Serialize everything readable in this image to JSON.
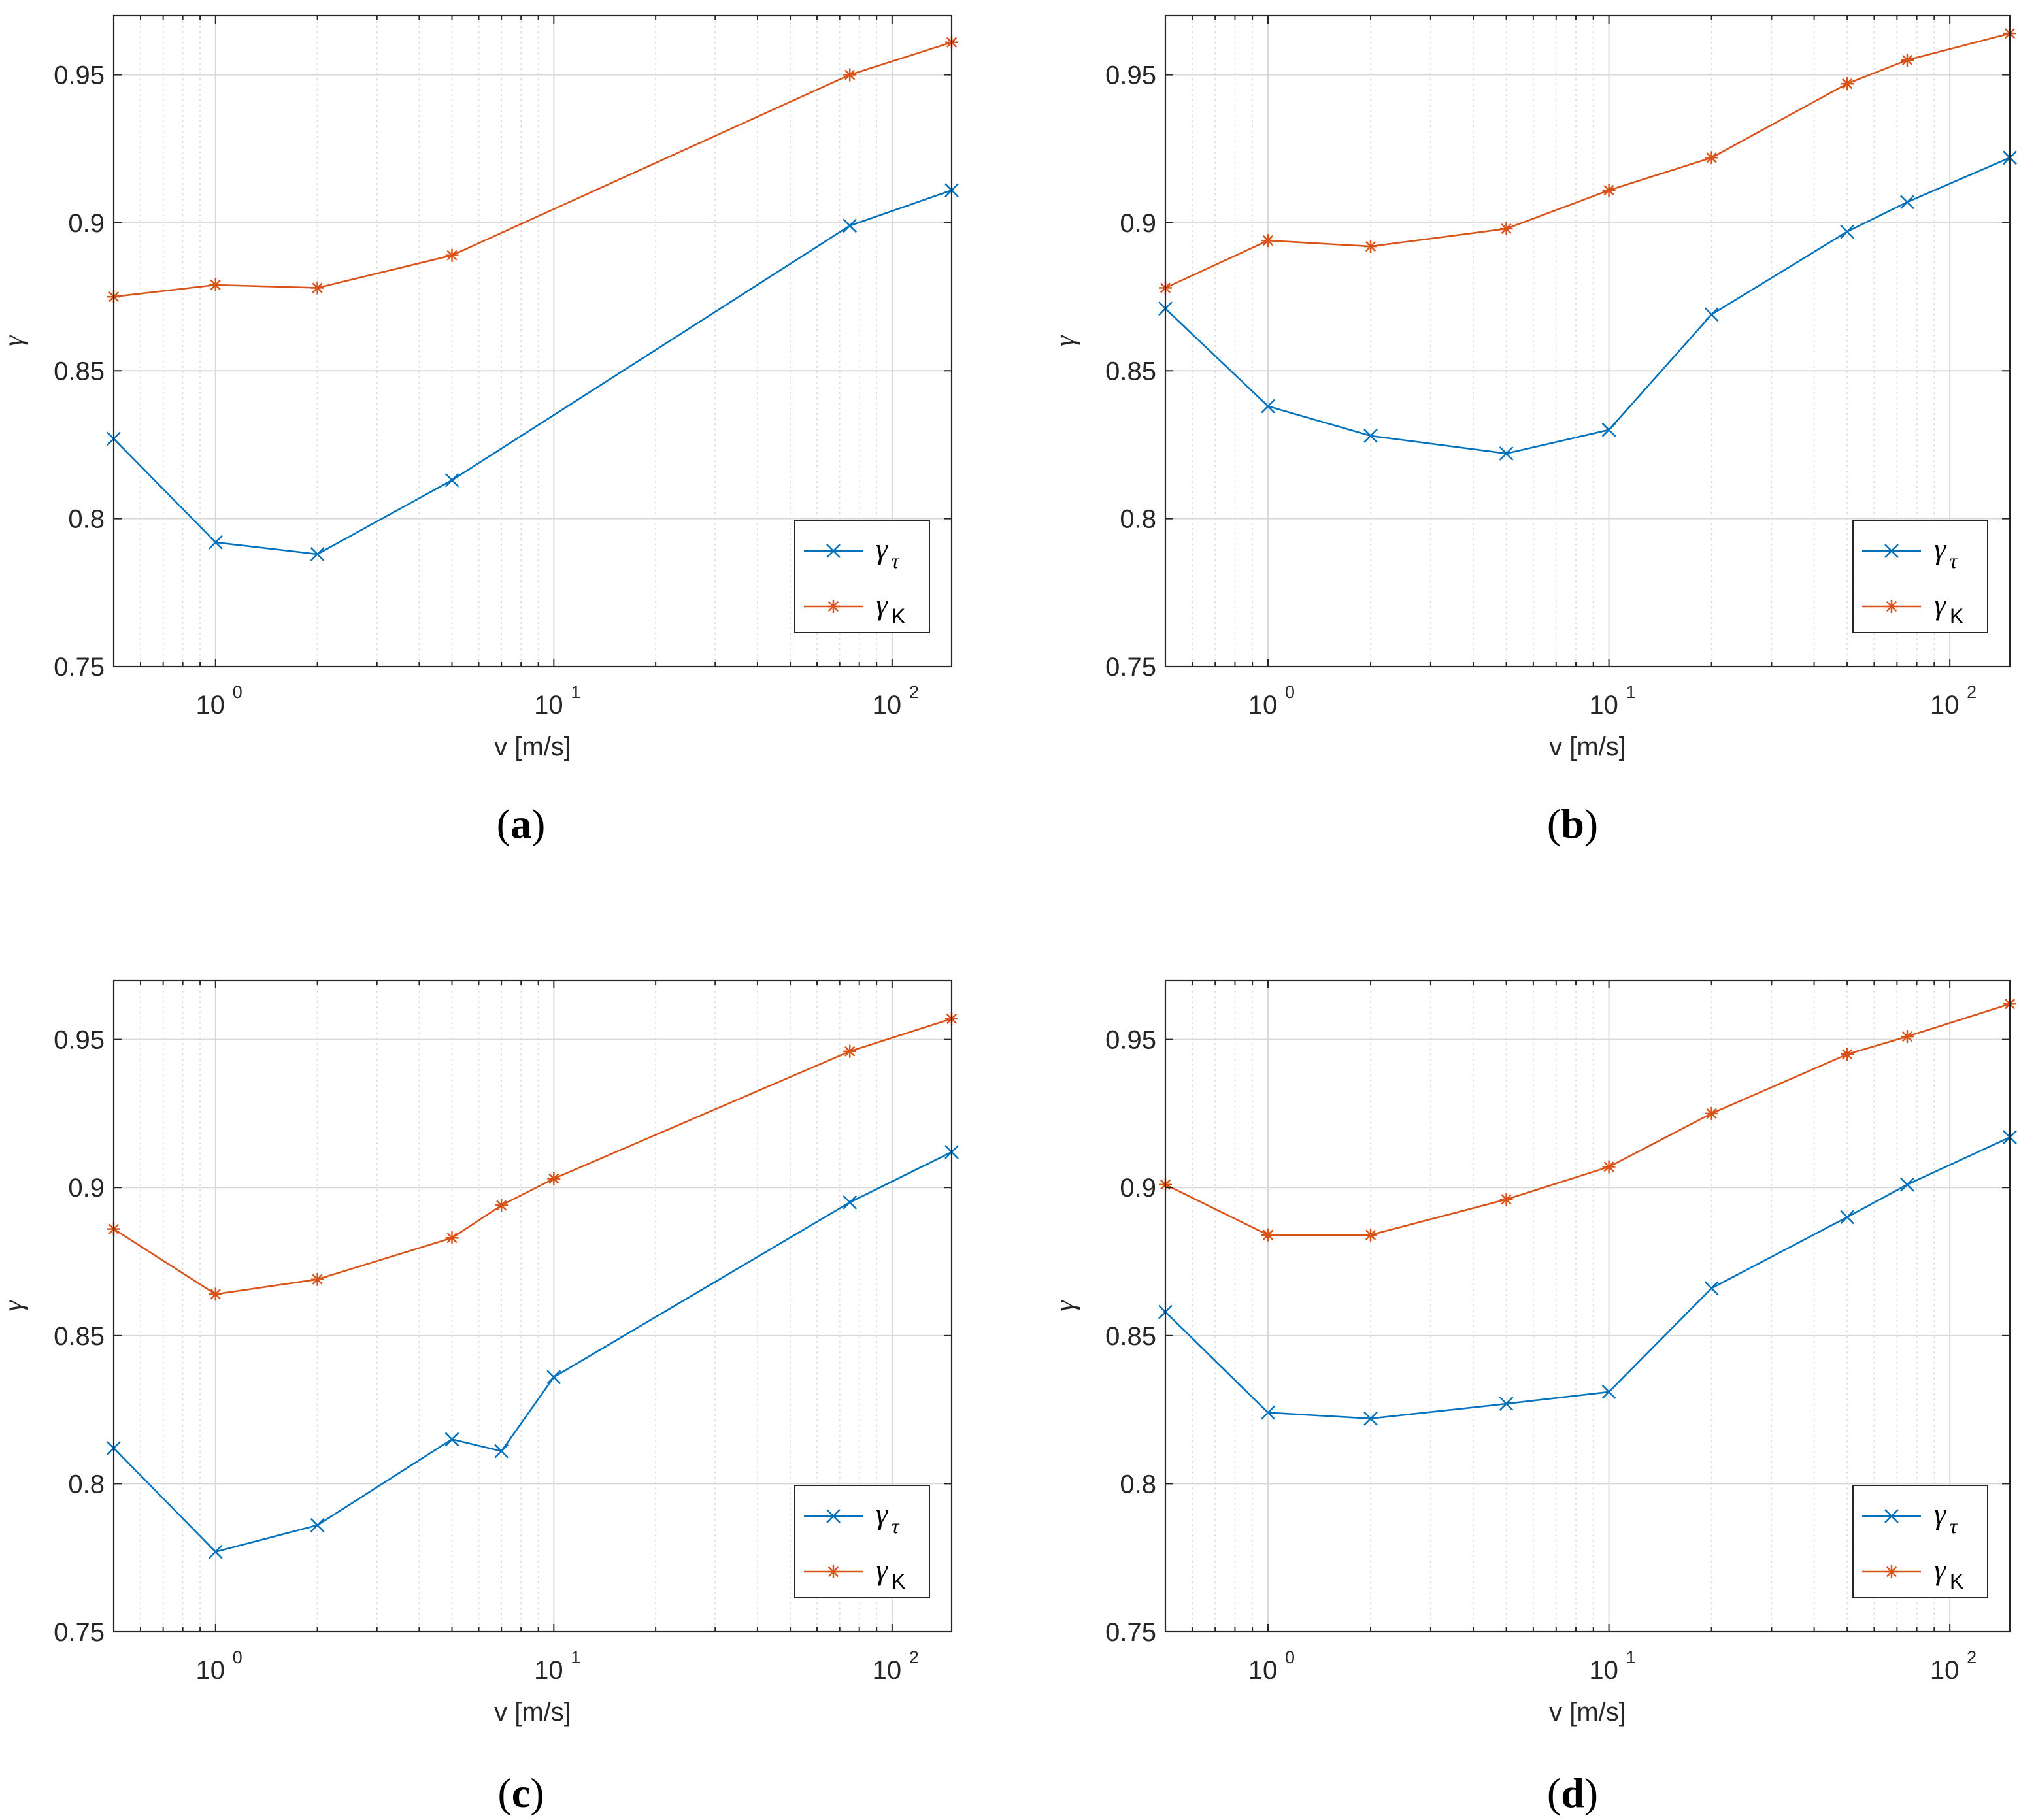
{
  "figure": {
    "colors": {
      "gamma_tau": "#0072BD",
      "gamma_K": "#D95319",
      "axis": "#262626",
      "grid": "#d9d9d9"
    },
    "legend_entries": [
      {
        "base": "γ",
        "sub": "τ",
        "series": "gamma_tau",
        "marker": "x"
      },
      {
        "base": "γ",
        "sub": "K",
        "series": "gamma_K",
        "marker": "star"
      }
    ]
  },
  "chart_data": [
    {
      "panel": "a",
      "caption_letter": "a",
      "type": "line",
      "xlabel": "v [m/s]",
      "ylabel": "γ",
      "xscale": "log",
      "xlim": [
        0.5,
        150
      ],
      "ylim": [
        0.75,
        0.97
      ],
      "yticks": [
        "0.75",
        "0.8",
        "0.85",
        "0.9",
        "0.95"
      ],
      "xticks": [
        {
          "base": "10",
          "exp": "0"
        },
        {
          "base": "10",
          "exp": "1"
        },
        {
          "base": "10",
          "exp": "2"
        }
      ],
      "grid": true,
      "legend_position": "bottom-right",
      "series": [
        {
          "name": "γτ",
          "key": "gamma_tau",
          "x": [
            0.5,
            1,
            2,
            5,
            75,
            150
          ],
          "y": [
            0.827,
            0.792,
            0.788,
            0.813,
            0.899,
            0.911
          ]
        },
        {
          "name": "γK",
          "key": "gamma_K",
          "x": [
            0.5,
            1,
            2,
            5,
            75,
            150
          ],
          "y": [
            0.875,
            0.879,
            0.878,
            0.889,
            0.95,
            0.961
          ]
        }
      ]
    },
    {
      "panel": "b",
      "caption_letter": "b",
      "type": "line",
      "xlabel": "v [m/s]",
      "ylabel": "γ",
      "xscale": "log",
      "xlim": [
        0.5,
        150
      ],
      "ylim": [
        0.75,
        0.97
      ],
      "yticks": [
        "0.75",
        "0.8",
        "0.85",
        "0.9",
        "0.95"
      ],
      "xticks": [
        {
          "base": "10",
          "exp": "0"
        },
        {
          "base": "10",
          "exp": "1"
        },
        {
          "base": "10",
          "exp": "2"
        }
      ],
      "grid": true,
      "legend_position": "bottom-right",
      "series": [
        {
          "name": "γτ",
          "key": "gamma_tau",
          "x": [
            0.5,
            1,
            2,
            5,
            10,
            20,
            50,
            75,
            150
          ],
          "y": [
            0.871,
            0.838,
            0.828,
            0.822,
            0.83,
            0.869,
            0.897,
            0.907,
            0.922
          ]
        },
        {
          "name": "γK",
          "key": "gamma_K",
          "x": [
            0.5,
            1,
            2,
            5,
            10,
            20,
            50,
            75,
            150
          ],
          "y": [
            0.878,
            0.894,
            0.892,
            0.898,
            0.911,
            0.922,
            0.947,
            0.955,
            0.964
          ]
        }
      ]
    },
    {
      "panel": "c",
      "caption_letter": "c",
      "type": "line",
      "xlabel": "v [m/s]",
      "ylabel": "γ",
      "xscale": "log",
      "xlim": [
        0.5,
        150
      ],
      "ylim": [
        0.75,
        0.97
      ],
      "yticks": [
        "0.75",
        "0.8",
        "0.85",
        "0.9",
        "0.95"
      ],
      "xticks": [
        {
          "base": "10",
          "exp": "0"
        },
        {
          "base": "10",
          "exp": "1"
        },
        {
          "base": "10",
          "exp": "2"
        }
      ],
      "grid": true,
      "legend_position": "bottom-right",
      "series": [
        {
          "name": "γτ",
          "key": "gamma_tau",
          "x": [
            0.5,
            1,
            2,
            5,
            7,
            10,
            75,
            150
          ],
          "y": [
            0.812,
            0.777,
            0.786,
            0.815,
            0.811,
            0.836,
            0.895,
            0.912
          ]
        },
        {
          "name": "γK",
          "key": "gamma_K",
          "x": [
            0.5,
            1,
            2,
            5,
            7,
            10,
            75,
            150
          ],
          "y": [
            0.886,
            0.864,
            0.869,
            0.883,
            0.894,
            0.903,
            0.946,
            0.957
          ]
        }
      ]
    },
    {
      "panel": "d",
      "caption_letter": "d",
      "type": "line",
      "xlabel": "v [m/s]",
      "ylabel": "γ",
      "xscale": "log",
      "xlim": [
        0.5,
        150
      ],
      "ylim": [
        0.75,
        0.97
      ],
      "yticks": [
        "0.75",
        "0.8",
        "0.85",
        "0.9",
        "0.95"
      ],
      "xticks": [
        {
          "base": "10",
          "exp": "0"
        },
        {
          "base": "10",
          "exp": "1"
        },
        {
          "base": "10",
          "exp": "2"
        }
      ],
      "grid": true,
      "legend_position": "bottom-right",
      "series": [
        {
          "name": "γτ",
          "key": "gamma_tau",
          "x": [
            0.5,
            1,
            2,
            5,
            10,
            20,
            50,
            75,
            150
          ],
          "y": [
            0.858,
            0.824,
            0.822,
            0.827,
            0.831,
            0.866,
            0.89,
            0.901,
            0.917
          ]
        },
        {
          "name": "γK",
          "key": "gamma_K",
          "x": [
            0.5,
            1,
            2,
            5,
            10,
            20,
            50,
            75,
            150
          ],
          "y": [
            0.901,
            0.884,
            0.884,
            0.896,
            0.907,
            0.925,
            0.945,
            0.951,
            0.962
          ]
        }
      ]
    }
  ]
}
